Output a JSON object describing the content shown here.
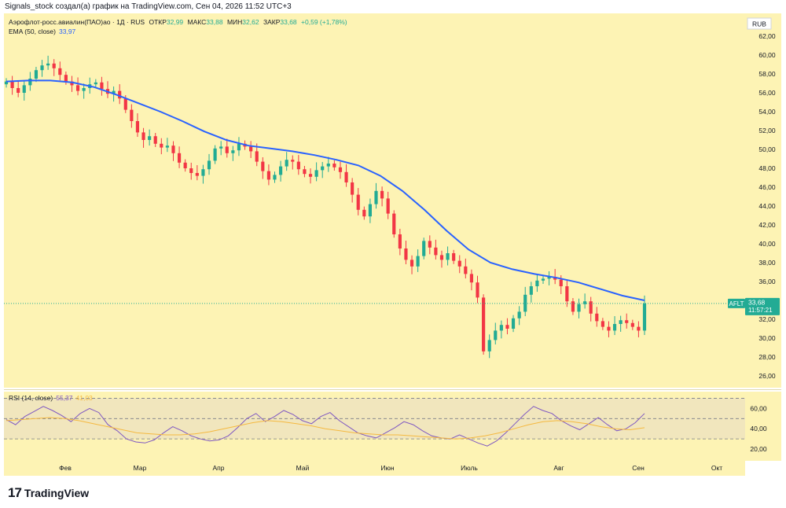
{
  "caption": "Signals_stock создал(а) график на TradingView.com, Сен 04, 2026 11:52 UTC+3",
  "legend": {
    "symbol": "Аэрофлот-росс.авиалин(ПАО)ао · 1Д · RUS",
    "open_label": "ОТКР",
    "open": "32,99",
    "high_label": "МАКС",
    "high": "33,88",
    "low_label": "МИН",
    "low": "32,62",
    "close_label": "ЗАКР",
    "close": "33,68",
    "change": "+0,59 (+1,78%)",
    "ema_label": "EMA (50, close)",
    "ema_value": "33,97",
    "rsi_label": "RSI (14, close)",
    "rsi_value": "55,37",
    "rsi_ma_value": "41,03"
  },
  "currency": "RUB",
  "price_tag": {
    "ticker": "AFLT",
    "price": "33,68",
    "timer": "11:57:21"
  },
  "brand": {
    "mark": "17",
    "name": "TradingView"
  },
  "colors": {
    "background": "#fdf3b4",
    "rsi_band": "#f1e6bd",
    "up": "#22ab94",
    "down": "#f23645",
    "ema": "#2962ff",
    "rsi": "#7e57c2",
    "rsi_ma": "#f5b940",
    "price_tag": "#22ab94"
  },
  "chart_data": {
    "type": "candlestick",
    "x_ticks": [
      "Фев",
      "Мар",
      "Апр",
      "Май",
      "Июн",
      "Июль",
      "Авг",
      "Сен",
      "Окт"
    ],
    "y_ticks": [
      "26,00",
      "28,00",
      "30,00",
      "32,00",
      "34,00",
      "36,00",
      "38,00",
      "40,00",
      "42,00",
      "44,00",
      "46,00",
      "48,00",
      "50,00",
      "52,00",
      "54,00",
      "56,00",
      "58,00",
      "60,00",
      "62,00"
    ],
    "ylim": [
      25,
      64
    ],
    "close_series": [
      57.2,
      56.5,
      56.0,
      56.8,
      57.5,
      58.4,
      58.9,
      59.1,
      58.6,
      57.9,
      57.2,
      56.8,
      56.2,
      56.5,
      56.9,
      57.1,
      56.4,
      55.9,
      56.2,
      55.4,
      54.2,
      53.0,
      51.8,
      51.0,
      51.4,
      50.6,
      50.2,
      50.4,
      49.6,
      48.6,
      48.0,
      47.5,
      47.2,
      47.9,
      48.8,
      50.1,
      50.3,
      49.6,
      49.9,
      50.6,
      50.3,
      49.8,
      48.7,
      47.7,
      46.8,
      47.3,
      48.2,
      48.9,
      48.7,
      47.9,
      47.4,
      47.1,
      47.8,
      48.2,
      48.5,
      48.1,
      47.6,
      46.5,
      45.2,
      43.6,
      42.9,
      44.2,
      45.6,
      44.8,
      43.2,
      41.0,
      39.5,
      38.3,
      37.6,
      38.7,
      40.3,
      39.6,
      38.8,
      38.3,
      39.0,
      38.2,
      37.6,
      36.8,
      35.9,
      34.3,
      28.6,
      29.8,
      30.8,
      31.4,
      31.0,
      32.1,
      32.8,
      34.6,
      35.5,
      36.1,
      36.3,
      36.5,
      36.2,
      35.5,
      33.9,
      32.8,
      33.6,
      33.9,
      32.6,
      31.8,
      31.2,
      30.8,
      31.5,
      31.9,
      31.6,
      31.2,
      30.8,
      33.68
    ],
    "ema_series": [
      57.2,
      57.3,
      57.3,
      57.1,
      56.6,
      55.8,
      54.9,
      54.0,
      53.0,
      51.9,
      51.0,
      50.4,
      50.1,
      49.8,
      49.4,
      48.9,
      48.3,
      47.2,
      45.6,
      43.6,
      41.4,
      39.4,
      38.0,
      37.3,
      36.8,
      36.4,
      35.9,
      35.2,
      34.5,
      34.0
    ],
    "rsi_series": [
      49,
      44,
      52,
      57,
      62,
      58,
      53,
      47,
      55,
      60,
      56,
      44,
      38,
      30,
      27,
      26,
      29,
      36,
      42,
      38,
      33,
      30,
      28,
      29,
      33,
      41,
      50,
      55,
      47,
      52,
      58,
      54,
      48,
      45,
      52,
      56,
      48,
      42,
      36,
      33,
      31,
      36,
      41,
      47,
      44,
      38,
      33,
      31,
      30,
      34,
      30,
      26,
      23,
      28,
      36,
      45,
      54,
      62,
      58,
      55,
      48,
      43,
      39,
      45,
      51,
      44,
      38,
      40,
      46,
      55
    ],
    "rsi_ma_series": [
      48,
      49,
      50,
      51,
      50,
      48,
      45,
      42,
      39,
      36,
      35,
      34,
      34,
      35,
      37,
      40,
      43,
      46,
      48,
      47,
      45,
      43,
      40,
      38,
      36,
      35,
      34,
      34,
      33,
      32,
      31,
      30,
      31,
      33,
      36,
      40,
      44,
      47,
      48,
      47,
      45,
      42,
      40,
      39,
      41
    ],
    "rsi_levels": [
      70,
      50,
      30
    ],
    "rsi_ticks": [
      "20,00",
      "40,00",
      "60,00"
    ],
    "rsi_ylim": [
      10,
      75
    ]
  }
}
